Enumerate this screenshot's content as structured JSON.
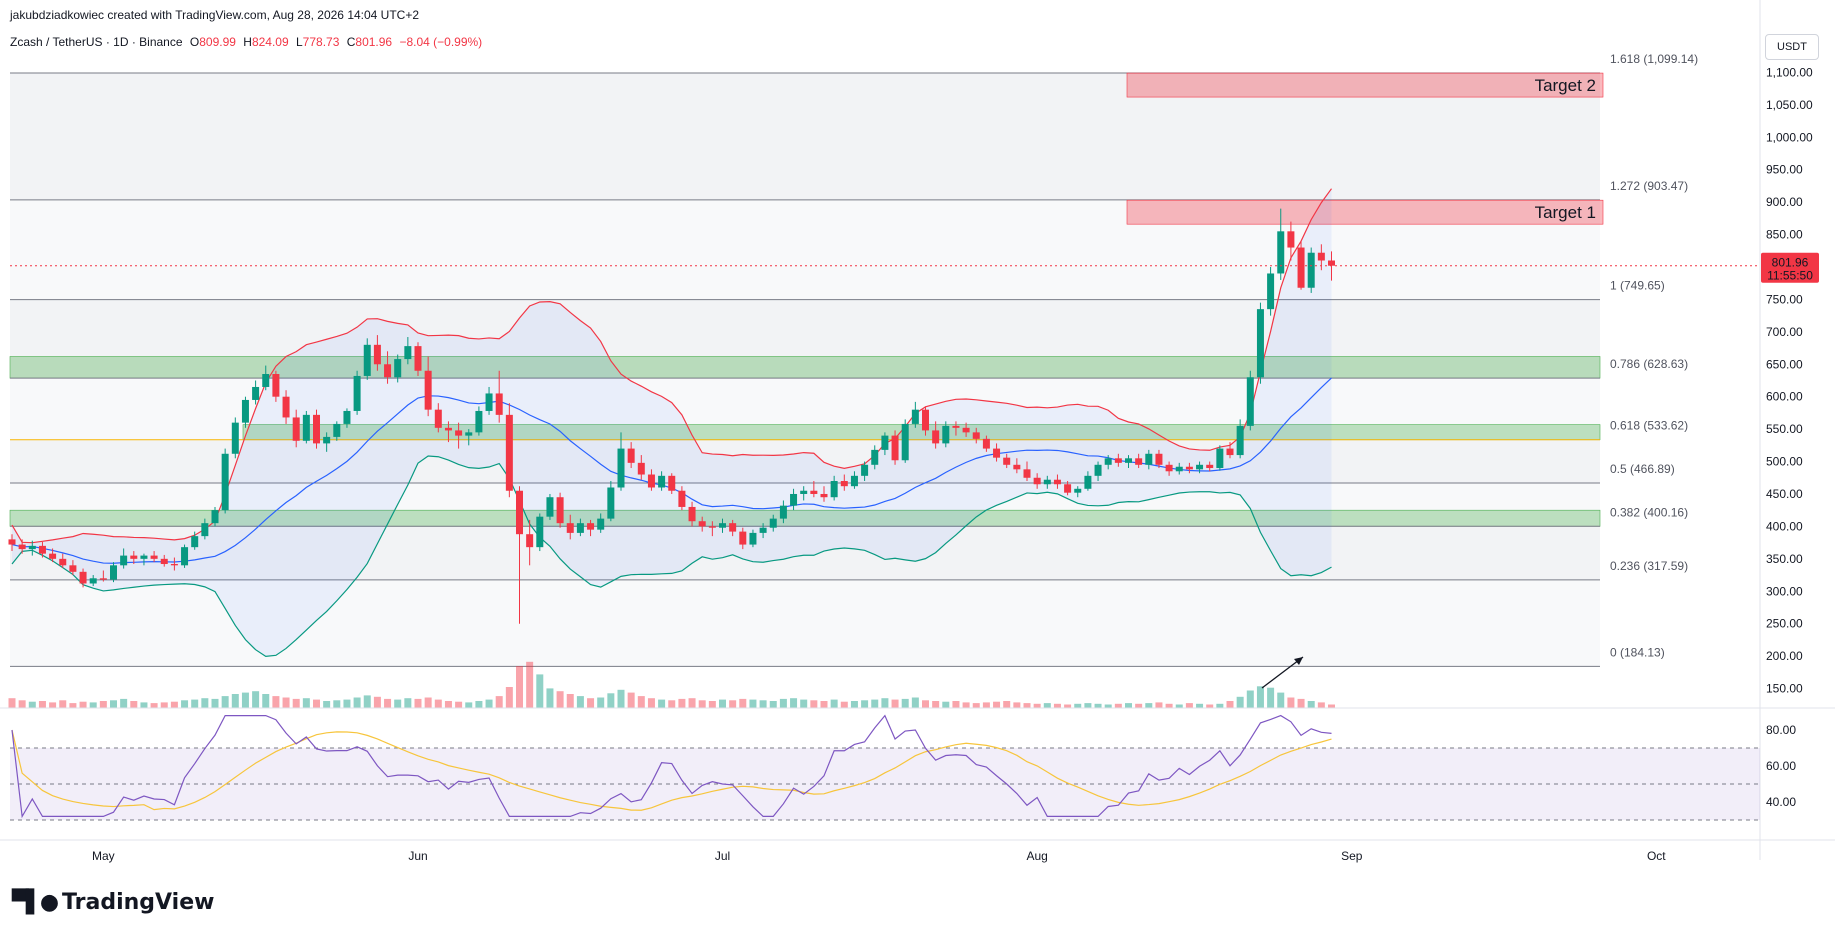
{
  "header": {
    "attribution": "jakubdziadkowiec created with TradingView.com, Aug 28, 2026 14:04 UTC+2",
    "symbol": "Zcash / TetherUS · 1D · Binance",
    "open_label": "O",
    "open": "809.99",
    "high_label": "H",
    "high": "824.09",
    "low_label": "L",
    "low": "778.73",
    "close_label": "C",
    "close": "801.96",
    "change": "−8.04 (−0.99%)"
  },
  "currency": "USDT",
  "price_badge": {
    "price": "801.96",
    "countdown": "11:55:50",
    "color": "#f23645"
  },
  "logo": {
    "text": "TradingView",
    "icon": "tradingview-logo-icon"
  },
  "colors": {
    "up": "#089981",
    "down": "#f23645",
    "upper_band": "#f23645",
    "basis": "#2962ff",
    "lower_band": "#089981",
    "rsi": "#7e57c2",
    "rsi_ma": "#f7c53c",
    "zone_green": "#4caf50",
    "zone_red": "#f23645",
    "fib_618": "#f7b500"
  },
  "chart_data": {
    "type": "candlestick",
    "y_axis": {
      "range": [
        120,
        1150
      ],
      "ticks": [
        "1,100.00",
        "1,050.00",
        "1,000.00",
        "950.00",
        "900.00",
        "850.00",
        "750.00",
        "700.00",
        "650.00",
        "600.00",
        "550.00",
        "500.00",
        "450.00",
        "400.00",
        "350.00",
        "300.00",
        "250.00",
        "200.00",
        "150.00"
      ]
    },
    "x_axis": {
      "labels": [
        {
          "text": "May",
          "day": 30
        },
        {
          "text": "Jun",
          "day": 61
        },
        {
          "text": "Jul",
          "day": 91
        },
        {
          "text": "Aug",
          "day": 122
        },
        {
          "text": "Sep",
          "day": 153
        },
        {
          "text": "Oct",
          "day": 183
        }
      ]
    },
    "fib_levels": [
      {
        "label": "1.618 (1,099.14)",
        "value": 1099.14
      },
      {
        "label": "1.272 (903.47)",
        "value": 903.47
      },
      {
        "label": "1 (749.65)",
        "value": 749.65
      },
      {
        "label": "0.786 (628.63)",
        "value": 628.63
      },
      {
        "label": "0.618 (533.62)",
        "value": 533.62
      },
      {
        "label": "0.5 (466.89)",
        "value": 466.89
      },
      {
        "label": "0.382 (400.16)",
        "value": 400.16
      },
      {
        "label": "0.236 (317.59)",
        "value": 317.59
      },
      {
        "label": "0 (184.13)",
        "value": 184.13
      }
    ],
    "targets": [
      {
        "label": "Target 2",
        "low": 1062,
        "high": 1099
      },
      {
        "label": "Target 1",
        "low": 866,
        "high": 903
      }
    ],
    "green_zones": [
      {
        "low": 628.63,
        "high": 662
      },
      {
        "low": 533.62,
        "high": 557
      },
      {
        "low": 400.16,
        "high": 425
      }
    ],
    "candles": [
      [
        0,
        380,
        388,
        362,
        372
      ],
      [
        1,
        372,
        380,
        358,
        365
      ],
      [
        2,
        365,
        378,
        355,
        370
      ],
      [
        3,
        370,
        376,
        352,
        358
      ],
      [
        4,
        358,
        366,
        345,
        350
      ],
      [
        5,
        350,
        358,
        336,
        340
      ],
      [
        6,
        340,
        348,
        325,
        330
      ],
      [
        7,
        330,
        335,
        306,
        312
      ],
      [
        8,
        312,
        325,
        308,
        320
      ],
      [
        9,
        320,
        332,
        315,
        318
      ],
      [
        10,
        318,
        345,
        314,
        340
      ],
      [
        11,
        340,
        366,
        335,
        355
      ],
      [
        12,
        355,
        362,
        342,
        350
      ],
      [
        13,
        350,
        358,
        340,
        355
      ],
      [
        14,
        355,
        362,
        345,
        350
      ],
      [
        15,
        350,
        356,
        338,
        342
      ],
      [
        16,
        342,
        352,
        332,
        340
      ],
      [
        17,
        340,
        372,
        336,
        368
      ],
      [
        18,
        368,
        392,
        364,
        385
      ],
      [
        19,
        385,
        412,
        380,
        405
      ],
      [
        20,
        405,
        430,
        400,
        425
      ],
      [
        21,
        425,
        520,
        420,
        512
      ],
      [
        22,
        512,
        568,
        505,
        560
      ],
      [
        23,
        560,
        600,
        552,
        595
      ],
      [
        24,
        595,
        625,
        588,
        615
      ],
      [
        25,
        615,
        648,
        610,
        635
      ],
      [
        26,
        635,
        640,
        592,
        600
      ],
      [
        27,
        600,
        610,
        558,
        568
      ],
      [
        28,
        568,
        580,
        522,
        532
      ],
      [
        29,
        532,
        578,
        528,
        572
      ],
      [
        30,
        572,
        580,
        520,
        528
      ],
      [
        31,
        528,
        545,
        515,
        538
      ],
      [
        32,
        538,
        562,
        532,
        558
      ],
      [
        33,
        558,
        582,
        552,
        578
      ],
      [
        34,
        578,
        640,
        572,
        632
      ],
      [
        35,
        632,
        690,
        626,
        680
      ],
      [
        36,
        680,
        695,
        640,
        650
      ],
      [
        37,
        650,
        670,
        620,
        630
      ],
      [
        38,
        630,
        665,
        622,
        658
      ],
      [
        39,
        658,
        692,
        650,
        678
      ],
      [
        40,
        678,
        684,
        632,
        640
      ],
      [
        41,
        640,
        662,
        570,
        580
      ],
      [
        42,
        580,
        590,
        545,
        552
      ],
      [
        43,
        552,
        562,
        530,
        548
      ],
      [
        44,
        548,
        560,
        520,
        540
      ],
      [
        45,
        540,
        550,
        525,
        545
      ],
      [
        46,
        545,
        585,
        540,
        578
      ],
      [
        47,
        578,
        615,
        572,
        605
      ],
      [
        48,
        605,
        640,
        560,
        572
      ],
      [
        49,
        572,
        590,
        445,
        455
      ],
      [
        50,
        455,
        462,
        250,
        388
      ],
      [
        51,
        388,
        410,
        340,
        368
      ],
      [
        52,
        368,
        420,
        362,
        415
      ],
      [
        53,
        415,
        450,
        410,
        445
      ],
      [
        54,
        445,
        452,
        398,
        405
      ],
      [
        55,
        405,
        418,
        380,
        390
      ],
      [
        56,
        390,
        412,
        385,
        405
      ],
      [
        57,
        405,
        410,
        385,
        395
      ],
      [
        58,
        395,
        420,
        390,
        412
      ],
      [
        59,
        412,
        470,
        408,
        460
      ],
      [
        60,
        460,
        545,
        455,
        520
      ],
      [
        61,
        520,
        530,
        490,
        498
      ],
      [
        62,
        498,
        510,
        472,
        480
      ],
      [
        63,
        480,
        488,
        455,
        460
      ],
      [
        64,
        460,
        485,
        455,
        478
      ],
      [
        65,
        478,
        482,
        450,
        455
      ],
      [
        66,
        455,
        462,
        425,
        430
      ],
      [
        67,
        430,
        438,
        400,
        408
      ],
      [
        68,
        408,
        415,
        392,
        400
      ],
      [
        69,
        400,
        408,
        385,
        398
      ],
      [
        70,
        398,
        412,
        390,
        405
      ],
      [
        71,
        405,
        410,
        385,
        392
      ],
      [
        72,
        392,
        398,
        365,
        372
      ],
      [
        73,
        372,
        395,
        368,
        390
      ],
      [
        74,
        390,
        405,
        382,
        398
      ],
      [
        75,
        398,
        418,
        392,
        412
      ],
      [
        76,
        412,
        440,
        405,
        432
      ],
      [
        77,
        432,
        458,
        425,
        450
      ],
      [
        78,
        450,
        462,
        440,
        455
      ],
      [
        79,
        455,
        470,
        445,
        450
      ],
      [
        80,
        450,
        462,
        438,
        445
      ],
      [
        81,
        445,
        478,
        440,
        470
      ],
      [
        82,
        470,
        480,
        455,
        462
      ],
      [
        83,
        462,
        485,
        458,
        478
      ],
      [
        84,
        478,
        500,
        470,
        495
      ],
      [
        85,
        495,
        525,
        488,
        518
      ],
      [
        86,
        518,
        545,
        510,
        540
      ],
      [
        87,
        540,
        548,
        495,
        502
      ],
      [
        88,
        502,
        565,
        498,
        558
      ],
      [
        89,
        558,
        592,
        552,
        580
      ],
      [
        90,
        580,
        585,
        540,
        548
      ],
      [
        91,
        548,
        562,
        520,
        528
      ],
      [
        92,
        528,
        562,
        522,
        555
      ],
      [
        93,
        555,
        562,
        540,
        552
      ],
      [
        94,
        552,
        560,
        538,
        545
      ],
      [
        95,
        545,
        552,
        528,
        535
      ],
      [
        96,
        535,
        540,
        515,
        520
      ],
      [
        97,
        520,
        528,
        500,
        506
      ],
      [
        98,
        506,
        512,
        490,
        495
      ],
      [
        99,
        495,
        505,
        482,
        488
      ],
      [
        100,
        488,
        500,
        470,
        475
      ],
      [
        101,
        475,
        482,
        458,
        465
      ],
      [
        102,
        465,
        478,
        458,
        472
      ],
      [
        103,
        472,
        480,
        458,
        465
      ],
      [
        104,
        465,
        470,
        448,
        452
      ],
      [
        105,
        452,
        462,
        445,
        458
      ],
      [
        106,
        458,
        485,
        455,
        478
      ],
      [
        107,
        478,
        500,
        470,
        495
      ],
      [
        108,
        495,
        510,
        488,
        505
      ],
      [
        109,
        505,
        512,
        492,
        498
      ],
      [
        110,
        498,
        510,
        490,
        505
      ],
      [
        111,
        505,
        512,
        490,
        495
      ],
      [
        112,
        495,
        518,
        488,
        512
      ],
      [
        113,
        512,
        518,
        490,
        495
      ],
      [
        114,
        495,
        500,
        478,
        485
      ],
      [
        115,
        485,
        498,
        480,
        492
      ],
      [
        116,
        492,
        498,
        482,
        488
      ],
      [
        117,
        488,
        500,
        482,
        495
      ],
      [
        118,
        495,
        500,
        485,
        490
      ],
      [
        119,
        490,
        525,
        486,
        520
      ],
      [
        120,
        520,
        530,
        505,
        510
      ],
      [
        121,
        510,
        565,
        505,
        555
      ],
      [
        122,
        555,
        640,
        548,
        630
      ],
      [
        123,
        630,
        745,
        620,
        735
      ],
      [
        124,
        735,
        800,
        725,
        790
      ],
      [
        125,
        790,
        890,
        780,
        855
      ],
      [
        126,
        855,
        870,
        810,
        830
      ],
      [
        127,
        830,
        840,
        765,
        768
      ],
      [
        128,
        768,
        830,
        760,
        822
      ],
      [
        129,
        822,
        835,
        795,
        810
      ],
      [
        130,
        810,
        824,
        779,
        802
      ]
    ],
    "volume": [
      28,
      22,
      18,
      20,
      16,
      22,
      14,
      18,
      16,
      20,
      22,
      26,
      20,
      16,
      14,
      16,
      18,
      22,
      24,
      28,
      26,
      34,
      40,
      44,
      48,
      40,
      34,
      30,
      26,
      28,
      24,
      20,
      22,
      24,
      30,
      36,
      32,
      26,
      24,
      28,
      26,
      30,
      24,
      20,
      18,
      16,
      20,
      24,
      34,
      60,
      120,
      132,
      96,
      56,
      48,
      40,
      34,
      28,
      30,
      42,
      52,
      44,
      34,
      28,
      24,
      22,
      26,
      28,
      22,
      20,
      24,
      22,
      26,
      24,
      22,
      20,
      26,
      28,
      24,
      22,
      20,
      24,
      18,
      20,
      22,
      24,
      28,
      24,
      26,
      30,
      22,
      20,
      18,
      20,
      16,
      14,
      16,
      18,
      20,
      16,
      14,
      12,
      14,
      12,
      10,
      12,
      14,
      12,
      10,
      12,
      14,
      12,
      14,
      16,
      12,
      10,
      14,
      12,
      10,
      12,
      20,
      32,
      50,
      62,
      58,
      44,
      30,
      26,
      20,
      16,
      10
    ],
    "rsi": {
      "upper": 70,
      "mid": 50,
      "lower": 30,
      "ticks": [
        "80.00",
        "60.00",
        "40.00"
      ],
      "range": [
        20,
        90
      ]
    }
  }
}
